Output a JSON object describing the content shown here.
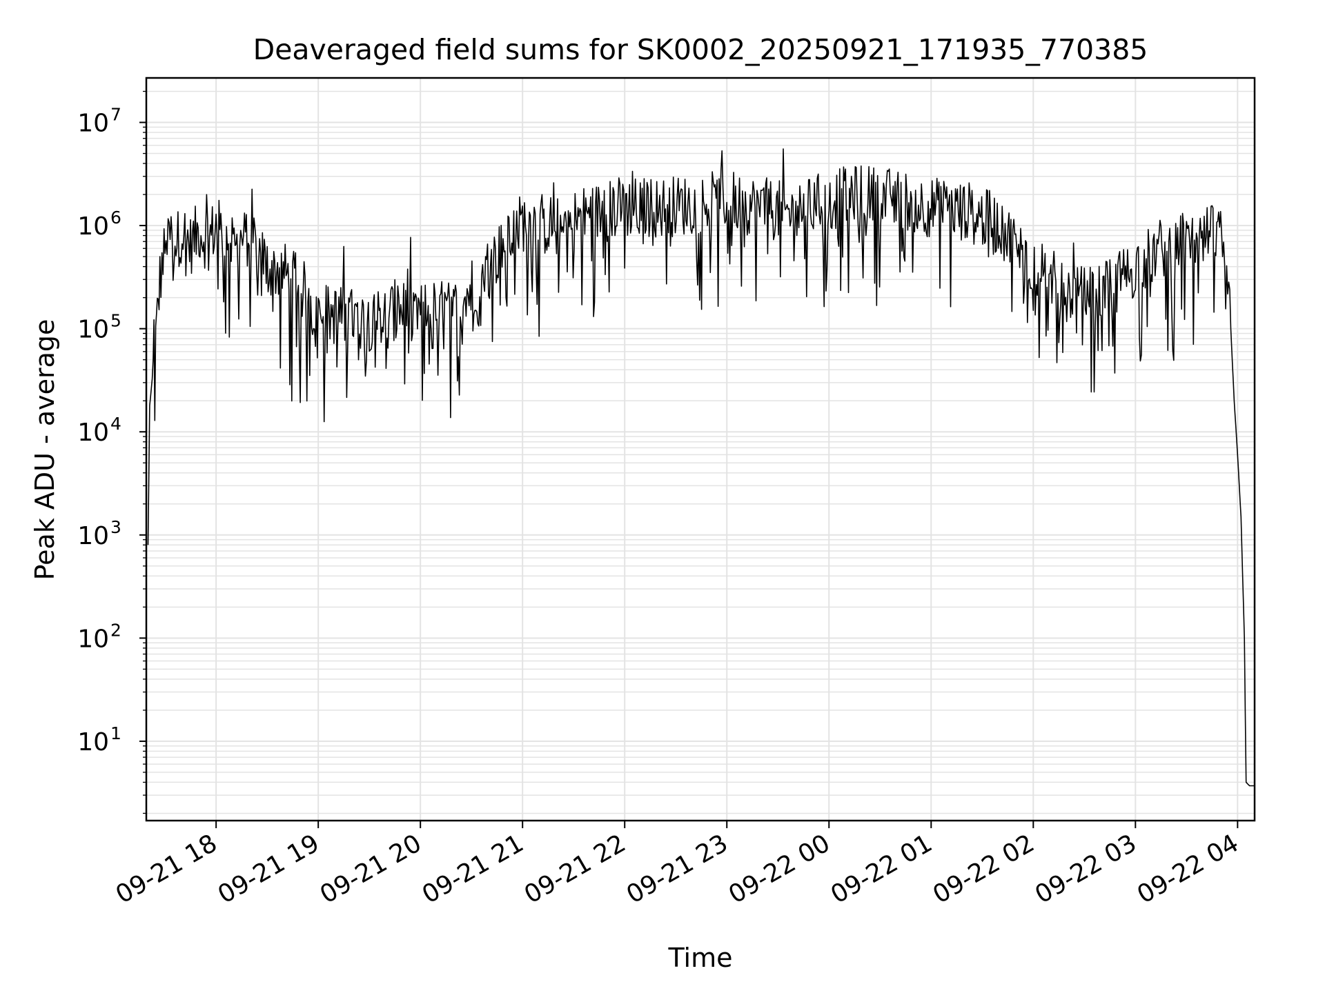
{
  "chart_data": {
    "type": "line",
    "title": "Deaveraged field sums for SK0002_20250921_171935_770385",
    "xlabel": "Time",
    "ylabel": "Peak ADU - average",
    "yscale": "log",
    "xlim": [
      "2025-09-21 17:19",
      "2025-09-22 04:10"
    ],
    "ylim": [
      1.7,
      27000000
    ],
    "grid": true,
    "x_tick_labels": [
      "09-21 18",
      "09-21 19",
      "09-21 20",
      "09-21 21",
      "09-21 22",
      "09-21 23",
      "09-22 00",
      "09-22 01",
      "09-22 02",
      "09-22 03",
      "09-22 04"
    ],
    "y_tick_labels": [
      {
        "base": "10",
        "exp": "1"
      },
      {
        "base": "10",
        "exp": "2"
      },
      {
        "base": "10",
        "exp": "3"
      },
      {
        "base": "10",
        "exp": "4"
      },
      {
        "base": "10",
        "exp": "5"
      },
      {
        "base": "10",
        "exp": "6"
      },
      {
        "base": "10",
        "exp": "7"
      }
    ],
    "series": [
      {
        "color": "#000000",
        "x": [
          "2025-09-21 17:20",
          "2025-09-21 17:21",
          "2025-09-21 17:23",
          "2025-09-21 17:25",
          "2025-09-21 17:27",
          "2025-09-21 17:30",
          "2025-09-21 17:33",
          "2025-09-21 17:37",
          "2025-09-21 17:40",
          "2025-09-21 17:45",
          "2025-09-21 17:50",
          "2025-09-21 17:55",
          "2025-09-21 18:00",
          "2025-09-21 18:10",
          "2025-09-21 18:20",
          "2025-09-21 18:30",
          "2025-09-21 18:40",
          "2025-09-21 18:50",
          "2025-09-21 19:00",
          "2025-09-21 19:15",
          "2025-09-21 19:30",
          "2025-09-21 19:45",
          "2025-09-21 20:00",
          "2025-09-21 20:20",
          "2025-09-21 20:40",
          "2025-09-21 21:00",
          "2025-09-21 21:20",
          "2025-09-21 21:40",
          "2025-09-21 22:00",
          "2025-09-21 22:20",
          "2025-09-21 22:40",
          "2025-09-21 23:00",
          "2025-09-21 23:20",
          "2025-09-21 23:40",
          "2025-09-22 00:00",
          "2025-09-22 00:20",
          "2025-09-22 00:40",
          "2025-09-22 01:00",
          "2025-09-22 01:20",
          "2025-09-22 01:40",
          "2025-09-22 02:00",
          "2025-09-22 02:15",
          "2025-09-22 02:30",
          "2025-09-22 02:45",
          "2025-09-22 03:00",
          "2025-09-22 03:15",
          "2025-09-22 03:30",
          "2025-09-22 03:45",
          "2025-09-22 03:50",
          "2025-09-22 03:53",
          "2025-09-22 03:56",
          "2025-09-22 03:58",
          "2025-09-22 04:00",
          "2025-09-22 04:02",
          "2025-09-22 04:04",
          "2025-09-22 04:05",
          "2025-09-22 04:07",
          "2025-09-22 04:09",
          "2025-09-22 04:10"
        ],
        "y": [
          800,
          18000,
          40000,
          100000,
          300000,
          600000,
          800000,
          700000,
          900000,
          650000,
          900000,
          700000,
          1000000,
          600000,
          800000,
          400000,
          350000,
          250000,
          150000,
          130000,
          120000,
          150000,
          150000,
          150000,
          400000,
          1100000,
          1000000,
          1300000,
          1500000,
          1500000,
          1600000,
          1800000,
          1500000,
          1300000,
          1800000,
          2000000,
          1800000,
          1500000,
          1400000,
          1000000,
          400000,
          250000,
          200000,
          250000,
          400000,
          600000,
          700000,
          800000,
          700000,
          300000,
          100000,
          20000,
          6000,
          1500,
          100,
          4,
          3.7,
          3.7,
          3.7
        ]
      }
    ]
  }
}
